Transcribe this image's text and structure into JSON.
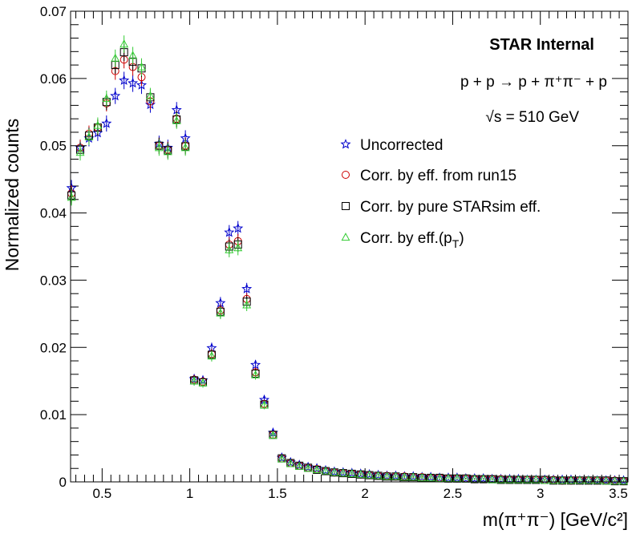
{
  "chart_data": {
    "type": "scatter",
    "xlabel": "m(π⁺π⁻) [GeV/c²]",
    "ylabel": "Normalized counts",
    "xlim": [
      0.32,
      3.5
    ],
    "ylim": [
      0,
      0.07
    ],
    "xticks": [
      0.5,
      1,
      1.5,
      2,
      2.5,
      3,
      3.5
    ],
    "xtick_labels": [
      "0.5",
      "1",
      "1.5",
      "2",
      "2.5",
      "3",
      "3.5"
    ],
    "yticks": [
      0,
      0.01,
      0.02,
      0.03,
      0.04,
      0.05,
      0.06,
      0.07
    ],
    "ytick_labels": [
      "0",
      "0.01",
      "0.02",
      "0.03",
      "0.04",
      "0.05",
      "0.06",
      "0.07"
    ],
    "grid": false,
    "legend_position": "top-right",
    "annotations": {
      "label": "STAR Internal",
      "process": "p + p → p + π⁺π⁻ + p",
      "energy": "√s = 510 GeV"
    },
    "x": [
      0.325,
      0.375,
      0.425,
      0.475,
      0.525,
      0.575,
      0.625,
      0.675,
      0.725,
      0.775,
      0.825,
      0.875,
      0.925,
      0.975,
      1.025,
      1.075,
      1.125,
      1.175,
      1.225,
      1.275,
      1.325,
      1.375,
      1.425,
      1.475,
      1.525,
      1.575,
      1.625,
      1.675,
      1.725,
      1.775,
      1.825,
      1.875,
      1.925,
      1.975,
      2.025,
      2.075,
      2.125,
      2.175,
      2.225,
      2.275,
      2.325,
      2.375,
      2.425,
      2.475,
      2.525,
      2.575,
      2.625,
      2.675,
      2.725,
      2.775,
      2.825,
      2.875,
      2.925,
      2.975,
      3.025,
      3.075,
      3.125,
      3.175,
      3.225,
      3.275,
      3.325,
      3.375,
      3.425,
      3.475
    ],
    "series": [
      {
        "name": "Uncorrected",
        "marker": "star",
        "color": "#0000cc",
        "values": [
          0.0437,
          0.0497,
          0.0511,
          0.0519,
          0.0533,
          0.0574,
          0.0597,
          0.0593,
          0.059,
          0.0561,
          0.0503,
          0.0497,
          0.0553,
          0.0511,
          0.0153,
          0.0151,
          0.0199,
          0.0266,
          0.0371,
          0.0377,
          0.0287,
          0.0174,
          0.0122,
          0.0073,
          0.0036,
          0.0029,
          0.0025,
          0.0022,
          0.002,
          0.0017,
          0.0015,
          0.0014,
          0.0013,
          0.0012,
          0.0011,
          0.001,
          0.0009,
          0.0009,
          0.0008,
          0.0008,
          0.0007,
          0.0007,
          0.0006,
          0.0006,
          0.0006,
          0.0005,
          0.0005,
          0.0005,
          0.0004,
          0.0004,
          0.0004,
          0.0004,
          0.0003,
          0.0003,
          0.0003,
          0.0003,
          0.0003,
          0.0003,
          0.0002,
          0.0002,
          0.0002,
          0.0002,
          0.0002,
          0.0002
        ],
        "errors": [
          0.0012,
          0.0012,
          0.0012,
          0.0012,
          0.0012,
          0.0012,
          0.0013,
          0.0013,
          0.0013,
          0.0012,
          0.0012,
          0.0012,
          0.0012,
          0.0012,
          0.0007,
          0.0007,
          0.0008,
          0.0009,
          0.0011,
          0.0011,
          0.0009,
          0.0007,
          0.0006,
          0.0005,
          0.0003,
          0.0003,
          0.0003,
          0.0003,
          0.0003,
          0.0003,
          0.0002,
          0.0002,
          0.0002,
          0.0002,
          0.0002,
          0.0002,
          0.0002,
          0.0002,
          0.0002,
          0.0002,
          0.0002,
          0.0002,
          0.0002,
          0.0002,
          0.0002,
          0.0001,
          0.0001,
          0.0001,
          0.0001,
          0.0001,
          0.0001,
          0.0001,
          0.0001,
          0.0001,
          0.0001,
          0.0001,
          0.0001,
          0.0001,
          0.0001,
          0.0001,
          0.0001,
          0.0001,
          0.0001,
          0.0001
        ]
      },
      {
        "name": "Corr. by eff. from run15",
        "marker": "circle",
        "color": "#cc0000",
        "values": [
          0.0429,
          0.0497,
          0.0518,
          0.0527,
          0.0563,
          0.0611,
          0.0628,
          0.0617,
          0.0602,
          0.0566,
          0.05,
          0.0494,
          0.054,
          0.05,
          0.0152,
          0.0149,
          0.019,
          0.0255,
          0.0353,
          0.0358,
          0.0272,
          0.0163,
          0.0116,
          0.007,
          0.0035,
          0.0028,
          0.0024,
          0.0021,
          0.0019,
          0.0016,
          0.0014,
          0.0013,
          0.0012,
          0.0011,
          0.001,
          0.0009,
          0.0009,
          0.0008,
          0.0008,
          0.0007,
          0.0007,
          0.0006,
          0.0006,
          0.0005,
          0.0005,
          0.0005,
          0.0004,
          0.0004,
          0.0004,
          0.0004,
          0.0003,
          0.0003,
          0.0003,
          0.0003,
          0.0003,
          0.0003,
          0.0002,
          0.0002,
          0.0002,
          0.0002,
          0.0002,
          0.0002,
          0.0002,
          0.0001
        ],
        "errors": [
          0.0012,
          0.0012,
          0.0012,
          0.0012,
          0.0012,
          0.0013,
          0.0013,
          0.0013,
          0.0013,
          0.0012,
          0.0012,
          0.0012,
          0.0012,
          0.0012,
          0.0007,
          0.0007,
          0.0008,
          0.0009,
          0.0011,
          0.0011,
          0.0009,
          0.0007,
          0.0006,
          0.0005,
          0.0003,
          0.0003,
          0.0003,
          0.0003,
          0.0003,
          0.0003,
          0.0002,
          0.0002,
          0.0002,
          0.0002,
          0.0002,
          0.0002,
          0.0002,
          0.0002,
          0.0002,
          0.0002,
          0.0002,
          0.0002,
          0.0002,
          0.0002,
          0.0002,
          0.0001,
          0.0001,
          0.0001,
          0.0001,
          0.0001,
          0.0001,
          0.0001,
          0.0001,
          0.0001,
          0.0001,
          0.0001,
          0.0001,
          0.0001,
          0.0001,
          0.0001,
          0.0001,
          0.0001,
          0.0001,
          0.0001
        ]
      },
      {
        "name": "Corr. by pure STARsim eff.",
        "marker": "square",
        "color": "#000000",
        "values": [
          0.0426,
          0.0494,
          0.0515,
          0.0527,
          0.0565,
          0.062,
          0.0639,
          0.0625,
          0.0615,
          0.0572,
          0.05,
          0.0493,
          0.0539,
          0.0499,
          0.0151,
          0.0148,
          0.0189,
          0.0253,
          0.035,
          0.0353,
          0.0268,
          0.0161,
          0.0115,
          0.007,
          0.0035,
          0.0028,
          0.0024,
          0.0021,
          0.0018,
          0.0016,
          0.0014,
          0.0013,
          0.0012,
          0.0011,
          0.001,
          0.0009,
          0.0008,
          0.0008,
          0.0007,
          0.0007,
          0.0006,
          0.0006,
          0.0006,
          0.0005,
          0.0005,
          0.0005,
          0.0004,
          0.0004,
          0.0004,
          0.0003,
          0.0003,
          0.0003,
          0.0003,
          0.0003,
          0.0003,
          0.0002,
          0.0002,
          0.0002,
          0.0002,
          0.0002,
          0.0002,
          0.0002,
          0.0001,
          0.0001
        ],
        "errors": [
          0.0012,
          0.0012,
          0.0012,
          0.0012,
          0.0012,
          0.0013,
          0.0013,
          0.0013,
          0.0013,
          0.0012,
          0.0012,
          0.0012,
          0.0012,
          0.0012,
          0.0007,
          0.0007,
          0.0008,
          0.0009,
          0.0011,
          0.0011,
          0.0009,
          0.0007,
          0.0006,
          0.0005,
          0.0003,
          0.0003,
          0.0003,
          0.0003,
          0.0003,
          0.0003,
          0.0002,
          0.0002,
          0.0002,
          0.0002,
          0.0002,
          0.0002,
          0.0002,
          0.0002,
          0.0002,
          0.0002,
          0.0002,
          0.0002,
          0.0002,
          0.0002,
          0.0002,
          0.0001,
          0.0001,
          0.0001,
          0.0001,
          0.0001,
          0.0001,
          0.0001,
          0.0001,
          0.0001,
          0.0001,
          0.0001,
          0.0001,
          0.0001,
          0.0001,
          0.0001,
          0.0001,
          0.0001,
          0.0001,
          0.0001
        ]
      },
      {
        "name": "Corr. by eff.(pT)",
        "name_main": "Corr. by eff.(p",
        "name_sub": "T",
        "name_end": ")",
        "marker": "triangle",
        "color": "#33cc33",
        "values": [
          0.0423,
          0.049,
          0.0513,
          0.053,
          0.057,
          0.063,
          0.0651,
          0.0634,
          0.0617,
          0.0574,
          0.0497,
          0.0491,
          0.0537,
          0.0497,
          0.015,
          0.0147,
          0.0187,
          0.0251,
          0.0345,
          0.0348,
          0.0263,
          0.0159,
          0.0114,
          0.0069,
          0.0034,
          0.0027,
          0.0023,
          0.002,
          0.0018,
          0.0016,
          0.0014,
          0.0013,
          0.0012,
          0.0011,
          0.001,
          0.0009,
          0.0008,
          0.0008,
          0.0007,
          0.0007,
          0.0006,
          0.0006,
          0.0005,
          0.0005,
          0.0005,
          0.0004,
          0.0004,
          0.0004,
          0.0003,
          0.0003,
          0.0003,
          0.0003,
          0.0003,
          0.0003,
          0.0002,
          0.0002,
          0.0002,
          0.0002,
          0.0002,
          0.0002,
          0.0002,
          0.0001,
          0.0001,
          0.0001
        ],
        "errors": [
          0.0012,
          0.0012,
          0.0012,
          0.0012,
          0.0012,
          0.0013,
          0.0013,
          0.0013,
          0.0013,
          0.0012,
          0.0012,
          0.0012,
          0.0012,
          0.0012,
          0.0007,
          0.0007,
          0.0008,
          0.0009,
          0.0011,
          0.0011,
          0.0009,
          0.0007,
          0.0006,
          0.0005,
          0.0003,
          0.0003,
          0.0003,
          0.0003,
          0.0003,
          0.0003,
          0.0002,
          0.0002,
          0.0002,
          0.0002,
          0.0002,
          0.0002,
          0.0002,
          0.0002,
          0.0002,
          0.0002,
          0.0002,
          0.0002,
          0.0002,
          0.0002,
          0.0002,
          0.0001,
          0.0001,
          0.0001,
          0.0001,
          0.0001,
          0.0001,
          0.0001,
          0.0001,
          0.0001,
          0.0001,
          0.0001,
          0.0001,
          0.0001,
          0.0001,
          0.0001,
          0.0001,
          0.0001,
          0.0001,
          0.0001
        ]
      }
    ]
  }
}
